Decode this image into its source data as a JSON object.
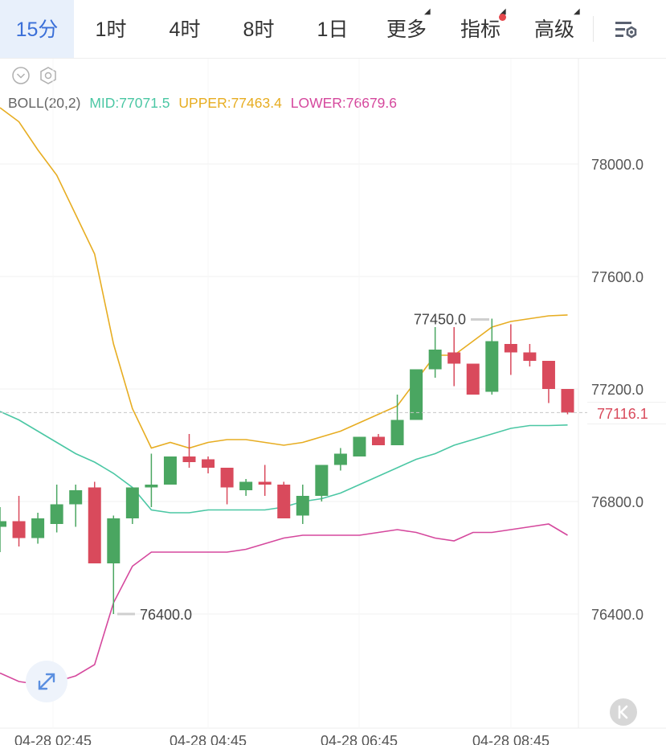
{
  "tabs": [
    {
      "label": "15分",
      "active": true
    },
    {
      "label": "1时",
      "active": false
    },
    {
      "label": "4时",
      "active": false
    },
    {
      "label": "8时",
      "active": false
    },
    {
      "label": "1日",
      "active": false
    },
    {
      "label": "更多",
      "active": false,
      "dropdown": true
    },
    {
      "label": "指标",
      "active": false,
      "dropdown": true,
      "badge": true
    },
    {
      "label": "高级",
      "active": false,
      "dropdown": true
    }
  ],
  "icons": {
    "settings": "chart-settings-icon",
    "collapse": "chevron-down-circle-icon",
    "indicator_settings": "hexagon-settings-icon",
    "expand": "expand-arrows-icon",
    "kline": "k-logo-icon"
  },
  "colors": {
    "up": "#4aa661",
    "down": "#d94a5c",
    "mid": "#4bc7a4",
    "upper": "#e7ad22",
    "lower": "#d5489d",
    "accent": "#3a6fd8"
  },
  "indicator": {
    "name": "BOLL(20,2)",
    "mid_label": "MID:77071.5",
    "upper_label": "UPPER:77463.4",
    "lower_label": "LOWER:76679.6"
  },
  "current_price": "77116.1",
  "chart_data": {
    "type": "candlestick",
    "y_ticks": [
      "78000.0",
      "77600.0",
      "77200.0",
      "76800.0",
      "76400.0"
    ],
    "x_ticks": [
      "04-28 02:45",
      "04-28 04:45",
      "04-28 06:45",
      "04-28 08:45"
    ],
    "high_label": "77450.0",
    "low_label": "76400.0",
    "candles": [
      {
        "o": 76710,
        "h": 76780,
        "l": 76620,
        "c": 76730
      },
      {
        "o": 76730,
        "h": 76820,
        "l": 76640,
        "c": 76670
      },
      {
        "o": 76670,
        "h": 76760,
        "l": 76650,
        "c": 76740
      },
      {
        "o": 76720,
        "h": 76860,
        "l": 76690,
        "c": 76790
      },
      {
        "o": 76790,
        "h": 76860,
        "l": 76710,
        "c": 76840
      },
      {
        "o": 76850,
        "h": 76870,
        "l": 76580,
        "c": 76580
      },
      {
        "o": 76580,
        "h": 76750,
        "l": 76400,
        "c": 76740
      },
      {
        "o": 76740,
        "h": 76850,
        "l": 76720,
        "c": 76850
      },
      {
        "o": 76850,
        "h": 76970,
        "l": 76780,
        "c": 76860
      },
      {
        "o": 76860,
        "h": 76960,
        "l": 76860,
        "c": 76960
      },
      {
        "o": 76960,
        "h": 77040,
        "l": 76920,
        "c": 76940
      },
      {
        "o": 76950,
        "h": 76960,
        "l": 76900,
        "c": 76920
      },
      {
        "o": 76920,
        "h": 76920,
        "l": 76790,
        "c": 76850
      },
      {
        "o": 76840,
        "h": 76880,
        "l": 76820,
        "c": 76870
      },
      {
        "o": 76870,
        "h": 76930,
        "l": 76820,
        "c": 76860
      },
      {
        "o": 76860,
        "h": 76870,
        "l": 76740,
        "c": 76740
      },
      {
        "o": 76750,
        "h": 76860,
        "l": 76720,
        "c": 76820
      },
      {
        "o": 76820,
        "h": 76930,
        "l": 76800,
        "c": 76930
      },
      {
        "o": 76930,
        "h": 76990,
        "l": 76910,
        "c": 76970
      },
      {
        "o": 76960,
        "h": 77030,
        "l": 76960,
        "c": 77030
      },
      {
        "o": 77030,
        "h": 77040,
        "l": 77000,
        "c": 77000
      },
      {
        "o": 77000,
        "h": 77180,
        "l": 77000,
        "c": 77090
      },
      {
        "o": 77090,
        "h": 77270,
        "l": 77090,
        "c": 77270
      },
      {
        "o": 77270,
        "h": 77420,
        "l": 77240,
        "c": 77340
      },
      {
        "o": 77330,
        "h": 77420,
        "l": 77210,
        "c": 77290
      },
      {
        "o": 77290,
        "h": 77290,
        "l": 77180,
        "c": 77180
      },
      {
        "o": 77190,
        "h": 77450,
        "l": 77180,
        "c": 77370
      },
      {
        "o": 77360,
        "h": 77430,
        "l": 77250,
        "c": 77330
      },
      {
        "o": 77330,
        "h": 77360,
        "l": 77280,
        "c": 77300
      },
      {
        "o": 77300,
        "h": 77300,
        "l": 77150,
        "c": 77200
      },
      {
        "o": 77200,
        "h": 77200,
        "l": 77110,
        "c": 77116
      }
    ],
    "series": [
      {
        "name": "UPPER",
        "values": [
          78200,
          78150,
          78050,
          77960,
          77820,
          77680,
          77360,
          77130,
          76990,
          77010,
          76990,
          77010,
          77020,
          77020,
          77010,
          77000,
          77010,
          77030,
          77050,
          77080,
          77110,
          77140,
          77230,
          77320,
          77320,
          77370,
          77420,
          77440,
          77450,
          77460,
          77463
        ]
      },
      {
        "name": "MID",
        "values": [
          77120,
          77090,
          77050,
          77010,
          76970,
          76940,
          76900,
          76850,
          76770,
          76760,
          76760,
          76770,
          76770,
          76770,
          76770,
          76780,
          76800,
          76810,
          76830,
          76860,
          76890,
          76920,
          76950,
          76970,
          77000,
          77020,
          77040,
          77060,
          77070,
          77070,
          77072
        ]
      },
      {
        "name": "LOWER",
        "values": [
          76190,
          76160,
          76150,
          76160,
          76180,
          76220,
          76440,
          76570,
          76620,
          76620,
          76620,
          76620,
          76620,
          76630,
          76650,
          76670,
          76680,
          76680,
          76680,
          76680,
          76690,
          76700,
          76690,
          76670,
          76660,
          76690,
          76690,
          76700,
          76710,
          76720,
          76680
        ]
      }
    ]
  }
}
